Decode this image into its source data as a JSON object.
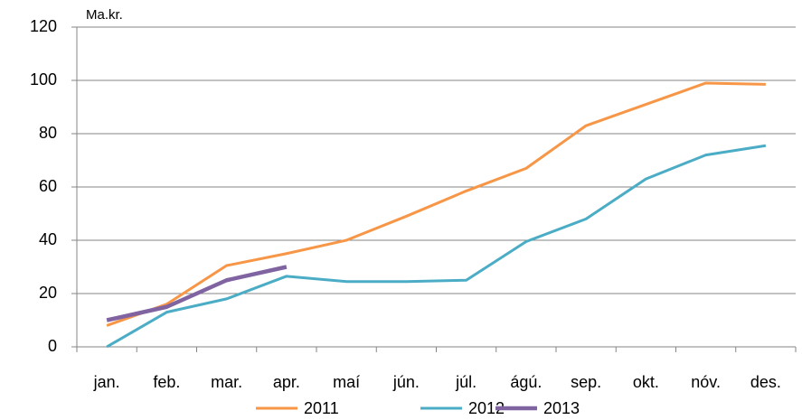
{
  "chart_data": {
    "type": "line",
    "unit_label": "Ma.kr.",
    "categories": [
      "jan.",
      "feb.",
      "mar.",
      "apr.",
      "maí",
      "jún.",
      "júl.",
      "ágú.",
      "sep.",
      "okt.",
      "nóv.",
      "des."
    ],
    "series": [
      {
        "name": "2011",
        "color": "#f79646",
        "values": [
          8,
          16,
          30.5,
          35,
          40,
          49,
          58.5,
          67,
          83,
          91,
          99,
          98.5
        ]
      },
      {
        "name": "2012",
        "color": "#4bacc6",
        "values": [
          0,
          13,
          18,
          26.5,
          24.5,
          24.5,
          25,
          39.5,
          48,
          63,
          72,
          75.5
        ]
      },
      {
        "name": "2013",
        "color": "#8064a2",
        "values": [
          10,
          15,
          25,
          30,
          null,
          null,
          null,
          null,
          null,
          null,
          null,
          null
        ]
      }
    ],
    "ylim": [
      0,
      120
    ],
    "yticks": [
      0,
      20,
      40,
      60,
      80,
      100,
      120
    ],
    "grid": true,
    "legend": "bottom"
  }
}
